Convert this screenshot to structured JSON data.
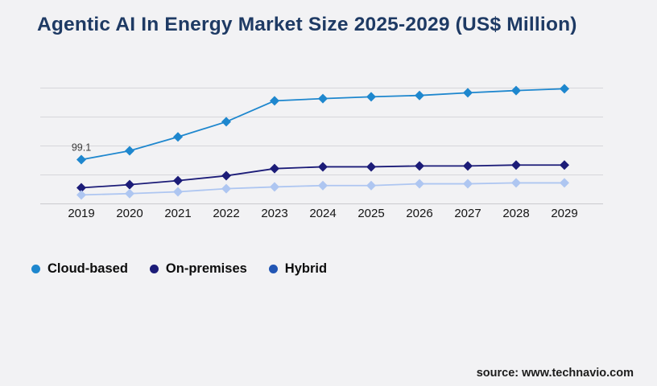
{
  "title": "Agentic AI In Energy Market Size 2025-2029 (US$ Million)",
  "source": {
    "label": "source: www.technavio.com"
  },
  "colors": {
    "background": "#f2f2f4",
    "title_text": "#1e3a64",
    "gridline": "#d6d6da",
    "axis_line": "#c9c9cd",
    "axis_label": "#141414",
    "annotation_text": "#3a3a3a"
  },
  "chart_data": {
    "type": "line",
    "title": "Agentic AI In Energy Market Size 2025-2029 (US$ Million)",
    "categories": [
      "2019",
      "2020",
      "2021",
      "2022",
      "2023",
      "2024",
      "2025",
      "2026",
      "2027",
      "2028",
      "2029"
    ],
    "series": [
      {
        "name": "Cloud-based",
        "color": "#1e87ce",
        "legend_color": "#1e87ce",
        "marker": "diamond",
        "values": [
          99.1,
          119,
          150,
          184,
          231,
          236,
          240,
          243,
          249,
          254,
          258
        ]
      },
      {
        "name": "On-premises",
        "color": "#1c1c78",
        "legend_color": "#1c1c78",
        "marker": "diamond",
        "values": [
          36,
          43,
          52,
          63,
          79,
          83,
          83,
          85,
          85,
          87,
          87
        ]
      },
      {
        "name": "Hybrid",
        "color": "#aec6f1",
        "legend_color": "#2256b4",
        "marker": "diamond",
        "values": [
          20,
          23,
          27,
          34,
          38,
          41,
          41,
          45,
          45,
          47,
          47
        ]
      }
    ],
    "annotation": {
      "text": "99.1",
      "series_index": 0,
      "point_index": 0
    },
    "xlabel": "",
    "ylabel": "",
    "ylim": [
      0,
      265
    ],
    "grid": true,
    "y_axis_labels_visible": false,
    "legend_position": "bottom-left",
    "values_note": "only first Cloud-based point labeled (99.1); other values estimated from gridlines"
  }
}
